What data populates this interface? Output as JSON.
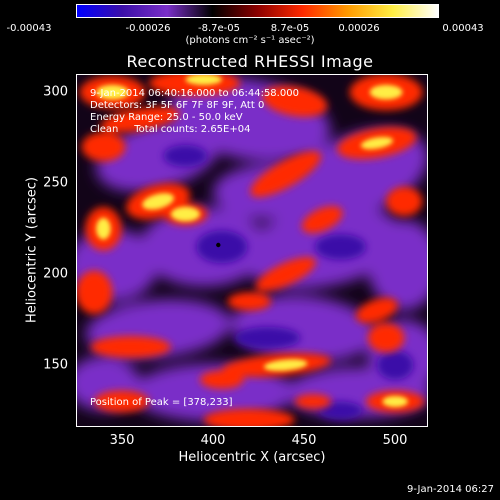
{
  "chart_data": {
    "type": "heatmap",
    "title": "Reconstructed RHESSI Image",
    "xlabel": "Heliocentric X (arcsec)",
    "ylabel": "Heliocentric Y (arcsec)",
    "xlim": [
      325,
      518
    ],
    "ylim": [
      116,
      310
    ],
    "x_ticks": [
      "350",
      "400",
      "450",
      "500"
    ],
    "y_ticks": [
      "150",
      "200",
      "250",
      "300"
    ],
    "colorbar": {
      "range": [
        -0.00043,
        0.00043
      ],
      "tick_labels": [
        "-0.00043",
        "-0.00026",
        "-8.7e-05",
        "8.7e-05",
        "0.00026",
        "0.00043"
      ],
      "units": "(photons cm⁻² s⁻¹ asec⁻²)"
    },
    "annotations": {
      "time_range": "9-Jan-2014 06:40:16.000 to 06:44:58.000",
      "detectors": "Detectors: 3F 5F 6F 7F 8F 9F, Att 0",
      "energy_range": "Energy Range: 25.0 - 50.0 keV",
      "clean": "Clean     Total counts: 2.65E+04",
      "peak": "Position of Peak = [378,233]"
    },
    "peak_position": [
      378,
      233
    ],
    "timestamp": "9-Jan-2014 06:27",
    "colormap": [
      "#0000ff",
      "#3b0fa8",
      "#7a2fc8",
      "#000000",
      "#8b0000",
      "#ff2a00",
      "#ff9a00",
      "#ffee44",
      "#ffffff"
    ]
  }
}
